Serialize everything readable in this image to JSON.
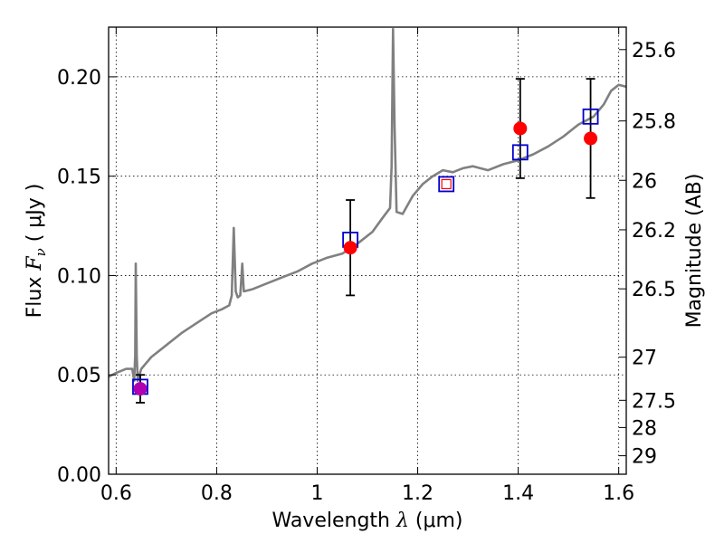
{
  "chart_data": {
    "type": "scatter",
    "title": "",
    "xlabel": "Wavelength  λ (μm)",
    "xlabel_parts": {
      "pre": "Wavelength  ",
      "sym": "λ",
      "post": " (μm)"
    },
    "ylabel": "Flux  Fν  ( μJy )",
    "ylabel_parts": {
      "pre": "Flux  ",
      "sym": "F",
      "sub": "ν",
      "post": "  ( μJy )"
    },
    "y2label": "Magnitude (AB)",
    "xlim": [
      0.585,
      1.615
    ],
    "ylim": [
      0.0,
      0.225
    ],
    "grid": "dotted",
    "legend": "none",
    "x_ticks": [
      {
        "value": 0.6,
        "label": "0.6"
      },
      {
        "value": 0.8,
        "label": "0.8"
      },
      {
        "value": 1.0,
        "label": "1"
      },
      {
        "value": 1.2,
        "label": "1.2"
      },
      {
        "value": 1.4,
        "label": "1.4"
      },
      {
        "value": 1.6,
        "label": "1.6"
      }
    ],
    "y_ticks": [
      {
        "value": 0.0,
        "label": "0.00"
      },
      {
        "value": 0.05,
        "label": "0.05"
      },
      {
        "value": 0.1,
        "label": "0.10"
      },
      {
        "value": 0.15,
        "label": "0.15"
      },
      {
        "value": 0.2,
        "label": "0.20"
      }
    ],
    "y2_ticks": [
      {
        "label": "25.6",
        "flux": 0.2137
      },
      {
        "label": "25.8",
        "flux": 0.1778
      },
      {
        "label": "26",
        "flux": 0.1479
      },
      {
        "label": "26.2",
        "flux": 0.123
      },
      {
        "label": "26.5",
        "flux": 0.0933
      },
      {
        "label": "27",
        "flux": 0.0589
      },
      {
        "label": "27.5",
        "flux": 0.0372
      },
      {
        "label": "28",
        "flux": 0.0235
      },
      {
        "label": "29",
        "flux": 0.0093
      }
    ],
    "colors": {
      "spectrum": "#808080",
      "observed": "#ff0000",
      "model": "#0000cc",
      "model_small": "#ff0000",
      "overlap": "#b000b0",
      "errorbar": "#000000"
    },
    "series": [
      {
        "kind": "spectrum",
        "points": [
          [
            0.585,
            0.049
          ],
          [
            0.6,
            0.051
          ],
          [
            0.61,
            0.052
          ],
          [
            0.62,
            0.053
          ],
          [
            0.632,
            0.053
          ],
          [
            0.636,
            0.047
          ],
          [
            0.638,
            0.06
          ],
          [
            0.639,
            0.106
          ],
          [
            0.641,
            0.06
          ],
          [
            0.643,
            0.047
          ],
          [
            0.65,
            0.053
          ],
          [
            0.67,
            0.059
          ],
          [
            0.7,
            0.065
          ],
          [
            0.73,
            0.071
          ],
          [
            0.76,
            0.076
          ],
          [
            0.79,
            0.081
          ],
          [
            0.81,
            0.083
          ],
          [
            0.825,
            0.085
          ],
          [
            0.83,
            0.09
          ],
          [
            0.834,
            0.124
          ],
          [
            0.838,
            0.092
          ],
          [
            0.842,
            0.089
          ],
          [
            0.847,
            0.09
          ],
          [
            0.851,
            0.106
          ],
          [
            0.854,
            0.092
          ],
          [
            0.87,
            0.093
          ],
          [
            0.9,
            0.096
          ],
          [
            0.93,
            0.099
          ],
          [
            0.96,
            0.102
          ],
          [
            0.99,
            0.106
          ],
          [
            1.02,
            0.109
          ],
          [
            1.05,
            0.111
          ],
          [
            1.08,
            0.116
          ],
          [
            1.11,
            0.122
          ],
          [
            1.13,
            0.129
          ],
          [
            1.145,
            0.134
          ],
          [
            1.148,
            0.155
          ],
          [
            1.151,
            0.224
          ],
          [
            1.154,
            0.175
          ],
          [
            1.158,
            0.132
          ],
          [
            1.17,
            0.131
          ],
          [
            1.19,
            0.14
          ],
          [
            1.21,
            0.146
          ],
          [
            1.23,
            0.15
          ],
          [
            1.25,
            0.153
          ],
          [
            1.27,
            0.152
          ],
          [
            1.29,
            0.154
          ],
          [
            1.31,
            0.155
          ],
          [
            1.34,
            0.153
          ],
          [
            1.37,
            0.156
          ],
          [
            1.4,
            0.158
          ],
          [
            1.43,
            0.161
          ],
          [
            1.46,
            0.165
          ],
          [
            1.49,
            0.17
          ],
          [
            1.52,
            0.176
          ],
          [
            1.55,
            0.18
          ],
          [
            1.57,
            0.186
          ],
          [
            1.585,
            0.193
          ],
          [
            1.6,
            0.196
          ],
          [
            1.615,
            0.195
          ]
        ]
      },
      {
        "kind": "observed",
        "points": [
          {
            "x": 0.648,
            "y": 0.043,
            "yerr": 0.007
          },
          {
            "x": 1.066,
            "y": 0.114,
            "yerr": 0.024
          },
          {
            "x": 1.404,
            "y": 0.174,
            "yerr": 0.025
          },
          {
            "x": 1.544,
            "y": 0.169,
            "yerr": 0.03
          }
        ]
      },
      {
        "kind": "model",
        "points": [
          {
            "x": 0.648,
            "y": 0.044
          },
          {
            "x": 1.066,
            "y": 0.118
          },
          {
            "x": 1.257,
            "y": 0.146
          },
          {
            "x": 1.404,
            "y": 0.162
          },
          {
            "x": 1.544,
            "y": 0.18
          }
        ]
      }
    ]
  }
}
